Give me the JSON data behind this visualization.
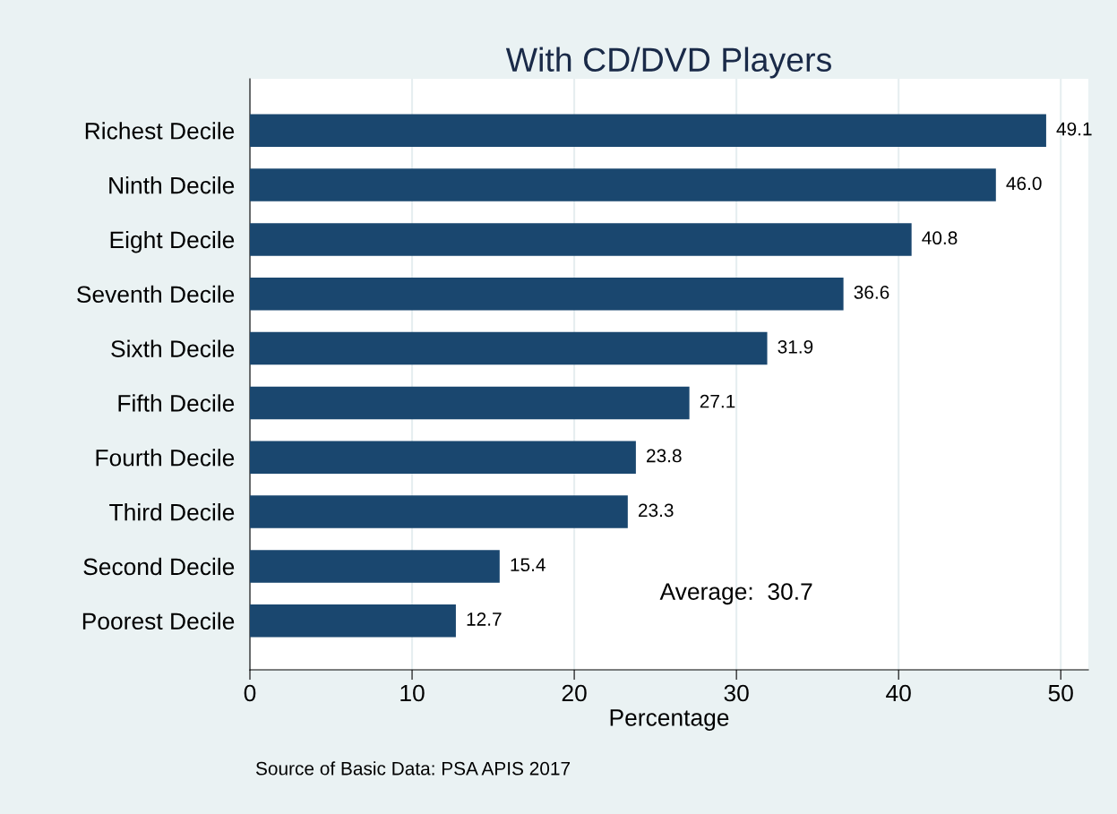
{
  "chart_data": {
    "type": "bar",
    "orientation": "horizontal",
    "title": "With CD/DVD Players",
    "xlabel": "Percentage",
    "categories": [
      "Richest Decile",
      "Ninth Decile",
      "Eight Decile",
      "Seventh Decile",
      "Sixth Decile",
      "Fifth Decile",
      "Fourth Decile",
      "Third Decile",
      "Second Decile",
      "Poorest Decile"
    ],
    "values": [
      49.1,
      46.0,
      40.8,
      36.6,
      31.9,
      27.1,
      23.8,
      23.3,
      15.4,
      12.7
    ],
    "value_labels": [
      "49.1",
      "46.0",
      "40.8",
      "36.6",
      "31.9",
      "27.1",
      "23.8",
      "23.3",
      "15.4",
      "12.7"
    ],
    "color": "#1a476f",
    "xlim": [
      0,
      51.7
    ],
    "xticks": [
      0,
      10,
      20,
      30,
      40,
      50
    ],
    "grid": "x",
    "annotations": [
      "Average:  30.7",
      "Source of Basic Data: PSA APIS 2017"
    ]
  }
}
